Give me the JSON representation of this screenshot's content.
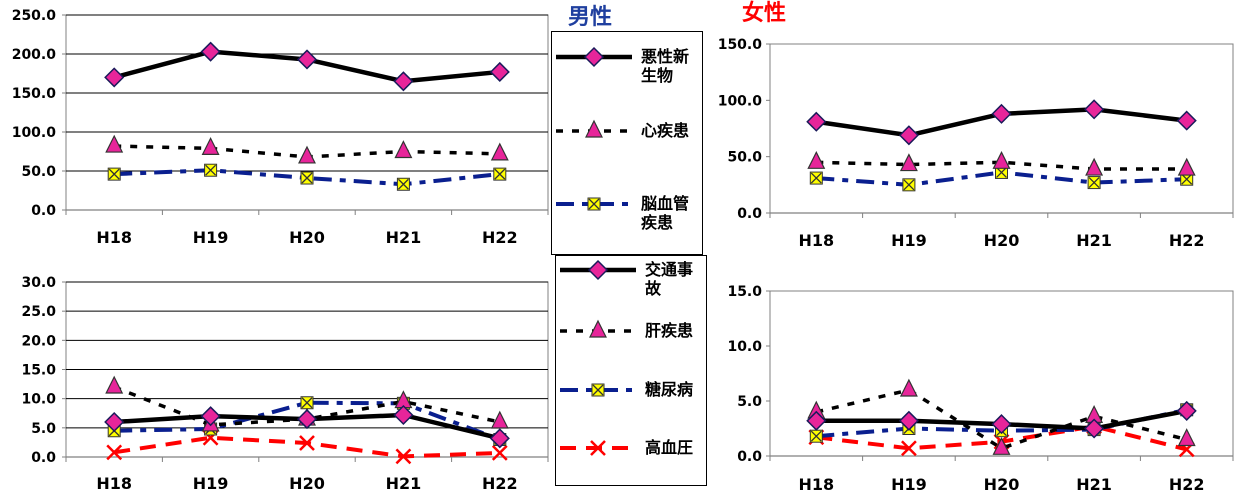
{
  "headings": {
    "male": "男性",
    "female": "女性"
  },
  "colors": {
    "line_black": "#000000",
    "line_navy": "#0a1f8f",
    "line_red": "#ff0000",
    "marker_pink": "#e7259a",
    "marker_yellow": "#ffff00",
    "heading_male": "#1f3f9f",
    "heading_female": "#ff0000"
  },
  "legend_top": [
    {
      "label": "悪性新生物",
      "style": "solid",
      "color": "#000000",
      "marker": "diamond"
    },
    {
      "label": "心疾患",
      "style": "dotted",
      "color": "#000000",
      "marker": "triangle"
    },
    {
      "label": "脳血管疾患",
      "style": "dashdot",
      "color": "#0a1f8f",
      "marker": "xsquare"
    }
  ],
  "legend_bottom": [
    {
      "label": "交通事故",
      "style": "solid",
      "color": "#000000",
      "marker": "diamond"
    },
    {
      "label": "肝疾患",
      "style": "dotted",
      "color": "#000000",
      "marker": "triangle"
    },
    {
      "label": "糖尿病",
      "style": "dashdot",
      "color": "#0a1f8f",
      "marker": "xsquare"
    },
    {
      "label": "高血圧",
      "style": "dashed",
      "color": "#ff0000",
      "marker": "cross"
    }
  ],
  "chart_data": [
    {
      "type": "line",
      "panel": "male-top",
      "categories": [
        "H18",
        "H19",
        "H20",
        "H21",
        "H22"
      ],
      "ylim": [
        0,
        250
      ],
      "yticks": [
        "0.0",
        "50.0",
        "100.0",
        "150.0",
        "200.0",
        "250.0"
      ],
      "grid": true,
      "series": [
        {
          "name": "悪性新生物",
          "values": [
            170,
            203,
            193,
            165,
            177
          ]
        },
        {
          "name": "心疾患",
          "values": [
            82,
            79,
            68,
            75,
            72
          ]
        },
        {
          "name": "脳血管疾患",
          "values": [
            46,
            51,
            41,
            33,
            46
          ]
        }
      ]
    },
    {
      "type": "line",
      "panel": "female-top",
      "categories": [
        "H18",
        "H19",
        "H20",
        "H21",
        "H22"
      ],
      "ylim": [
        0,
        150
      ],
      "yticks": [
        "0.0",
        "50.0",
        "100.0",
        "150.0"
      ],
      "grid": false,
      "series": [
        {
          "name": "悪性新生物",
          "values": [
            81,
            69,
            88,
            92,
            82
          ]
        },
        {
          "name": "心疾患",
          "values": [
            45,
            43,
            45,
            39,
            39
          ]
        },
        {
          "name": "脳血管疾患",
          "values": [
            31,
            25,
            36,
            27,
            30
          ]
        }
      ]
    },
    {
      "type": "line",
      "panel": "male-bottom",
      "categories": [
        "H18",
        "H19",
        "H20",
        "H21",
        "H22"
      ],
      "ylim": [
        0,
        30
      ],
      "yticks": [
        "0.0",
        "5.0",
        "10.0",
        "15.0",
        "20.0",
        "25.0",
        "30.0"
      ],
      "grid": true,
      "series": [
        {
          "name": "交通事故",
          "values": [
            6.0,
            7.0,
            6.5,
            7.2,
            3.2
          ]
        },
        {
          "name": "肝疾患",
          "values": [
            12.0,
            5.5,
            6.5,
            9.5,
            6.0
          ]
        },
        {
          "name": "糖尿病",
          "values": [
            4.5,
            4.8,
            9.3,
            9.2,
            3.0
          ]
        },
        {
          "name": "高血圧",
          "values": [
            0.8,
            3.3,
            2.4,
            0.1,
            0.7
          ]
        }
      ]
    },
    {
      "type": "line",
      "panel": "female-bottom",
      "categories": [
        "H18",
        "H19",
        "H20",
        "H21",
        "H22"
      ],
      "ylim": [
        0,
        15
      ],
      "yticks": [
        "0.0",
        "5.0",
        "10.0",
        "15.0"
      ],
      "grid": false,
      "series": [
        {
          "name": "交通事故",
          "values": [
            3.2,
            3.2,
            2.9,
            2.5,
            4.1
          ]
        },
        {
          "name": "肝疾患",
          "values": [
            4.0,
            6.0,
            0.7,
            3.6,
            1.5
          ]
        },
        {
          "name": "糖尿病",
          "values": [
            1.8,
            2.5,
            2.3,
            2.4,
            4.2
          ]
        },
        {
          "name": "高血圧",
          "values": [
            1.7,
            0.7,
            1.3,
            2.7,
            0.6
          ]
        }
      ]
    }
  ]
}
